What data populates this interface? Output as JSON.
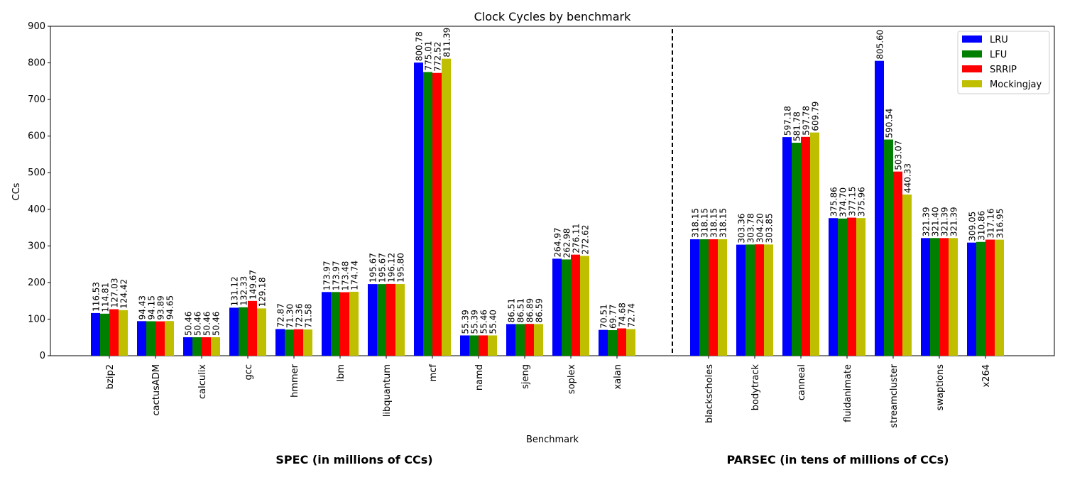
{
  "chart_data": {
    "type": "bar",
    "title": "Clock Cycles by benchmark",
    "xlabel": "Benchmark",
    "ylabel": "CCs",
    "ylim": [
      0,
      900
    ],
    "yticks": [
      0,
      100,
      200,
      300,
      400,
      500,
      600,
      700,
      800,
      900
    ],
    "legend_position": "top-right",
    "grid": false,
    "categories": [
      "bzip2",
      "cactusADM",
      "calculix",
      "gcc",
      "hmmer",
      "lbm",
      "libquantum",
      "mcf",
      "namd",
      "sjeng",
      "soplex",
      "xalan",
      "blackscholes",
      "bodytrack",
      "canneal",
      "fluidanimate",
      "streamcluster",
      "swaptions",
      "x264"
    ],
    "series": [
      {
        "name": "LRU",
        "color": "#0000ff",
        "values": [
          116.53,
          94.43,
          50.46,
          131.12,
          72.87,
          173.97,
          195.67,
          800.78,
          55.39,
          86.51,
          264.97,
          70.51,
          318.15,
          303.36,
          597.18,
          375.86,
          805.6,
          321.39,
          309.05
        ]
      },
      {
        "name": "LFU",
        "color": "#008000",
        "values": [
          114.81,
          94.15,
          50.46,
          132.33,
          71.3,
          173.97,
          195.67,
          775.01,
          55.39,
          86.51,
          262.98,
          69.77,
          318.15,
          303.78,
          581.78,
          374.7,
          590.54,
          321.4,
          310.86
        ]
      },
      {
        "name": "SRRIP",
        "color": "#ff0000",
        "values": [
          127.03,
          93.89,
          50.46,
          149.67,
          72.36,
          173.48,
          196.12,
          772.52,
          55.46,
          86.89,
          276.11,
          74.68,
          318.15,
          304.2,
          597.78,
          377.15,
          503.07,
          321.39,
          317.16
        ]
      },
      {
        "name": "Mockingjay",
        "color": "#bfbf00",
        "values": [
          124.42,
          94.65,
          50.46,
          129.18,
          71.58,
          174.74,
          195.8,
          811.39,
          55.4,
          86.59,
          272.62,
          72.74,
          318.15,
          303.85,
          609.79,
          375.96,
          440.33,
          321.39,
          316.95
        ]
      }
    ],
    "groups": [
      {
        "label": "SPEC (in millions of CCs)",
        "count": 12
      },
      {
        "label": "PARSEC (in tens of millions of CCs)",
        "count": 7
      }
    ]
  }
}
